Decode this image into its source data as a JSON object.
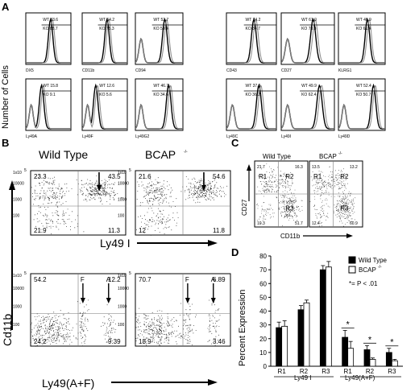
{
  "panel_letters": {
    "A": "A",
    "B": "B",
    "C": "C",
    "D": "D"
  },
  "histograms": {
    "y_axis_label": "Number of Cells",
    "panels": [
      {
        "marker": "DX5",
        "wt": "WT 83.6",
        "ko": "KO 88.7"
      },
      {
        "marker": "CD11b",
        "wt": "WT 64.2",
        "ko": "KO 75.3"
      },
      {
        "marker": "CD94",
        "wt": "WT 52.7",
        "ko": "KO 59.4"
      },
      {
        "marker": "CD43",
        "wt": "WT 74.2",
        "ko": "KO 84.7"
      },
      {
        "marker": "CD27",
        "wt": "WT 61.0",
        "ko": "KO 73.3"
      },
      {
        "marker": "KLRG1",
        "wt": "WT 48.9",
        "ko": "KO 61.4"
      },
      {
        "marker": "Ly49A",
        "wt": "WT 15.8",
        "ko": "KO  9.1"
      },
      {
        "marker": "Ly49F",
        "wt": "WT 12.6",
        "ko": "KO  5.6"
      },
      {
        "marker": "Ly49G2",
        "wt": "WT 46.7",
        "ko": "KO 34.6"
      },
      {
        "marker": "Ly49C",
        "wt": "WT 37.9",
        "ko": "KO 36.2"
      },
      {
        "marker": "Ly49I",
        "wt": "WT 49.9",
        "ko": "KO 62.4"
      },
      {
        "marker": "Ly49D",
        "wt": "WT 52.4",
        "ko": "KO 50.7"
      }
    ]
  },
  "panel_b": {
    "col_titles": [
      "Wild Type",
      "BCAP"
    ],
    "superscript": "-/-",
    "y_label": "Cd11b",
    "x_label_top": "Ly49 I",
    "x_label_bottom": "Ly49(A+F)",
    "tick_max": "1x10",
    "tick_exp": "5",
    "ticks": [
      "10000",
      "1000",
      "100"
    ],
    "plots": [
      {
        "ul": "23.3",
        "ur": "43.5",
        "ll": "21.9",
        "lr": "11.3"
      },
      {
        "ul": "21.6",
        "ur": "54.6",
        "ll": "12",
        "lr": "11.8"
      },
      {
        "ul": "54.2",
        "ur": "12.2",
        "ll": "24.2",
        "lr": "9.39",
        "f": "F",
        "a": "A"
      },
      {
        "ul": "70.7",
        "ur": "6.89",
        "ll": "18.9",
        "lr": "3.46",
        "f": "F",
        "a": "A"
      }
    ]
  },
  "panel_c": {
    "col_titles": [
      "Wild Type",
      "BCAP"
    ],
    "superscript": "-/-",
    "y_label": "CD27",
    "x_label": "CD11b",
    "plots": [
      {
        "r1": "21.7",
        "r2": "16.3",
        "r3": "51.7",
        "ll": "10.3"
      },
      {
        "r1": "13.5",
        "r2": "13.2",
        "r3": "60.9",
        "ll": "12.4"
      }
    ],
    "region_labels": [
      "R1",
      "R2",
      "R3"
    ]
  },
  "chart_data": {
    "type": "bar",
    "categories": [
      "R1",
      "R2",
      "R3",
      "R1",
      "R2",
      "R3"
    ],
    "groups": [
      "Ly49 I",
      "Ly49(A+F)"
    ],
    "series": [
      {
        "name": "Wild Type",
        "values": [
          28,
          41,
          70,
          21,
          12,
          10
        ],
        "errors": [
          4,
          3,
          3,
          5,
          3,
          3
        ],
        "color": "#000000"
      },
      {
        "name": "BCAP",
        "values": [
          29,
          46,
          72,
          13,
          5,
          4
        ],
        "errors": [
          4,
          2,
          4,
          5,
          1,
          1
        ],
        "color": "#ffffff"
      }
    ],
    "ylabel": "Percent Expression",
    "ylim": [
      0,
      80
    ],
    "yticks": [
      "0",
      "10",
      "20",
      "30",
      "40",
      "50",
      "60",
      "70",
      "80"
    ],
    "legend_superscript": "-/-",
    "significance_label": "*= P < .01",
    "sig_marks": [
      "*",
      "*",
      "*"
    ]
  }
}
